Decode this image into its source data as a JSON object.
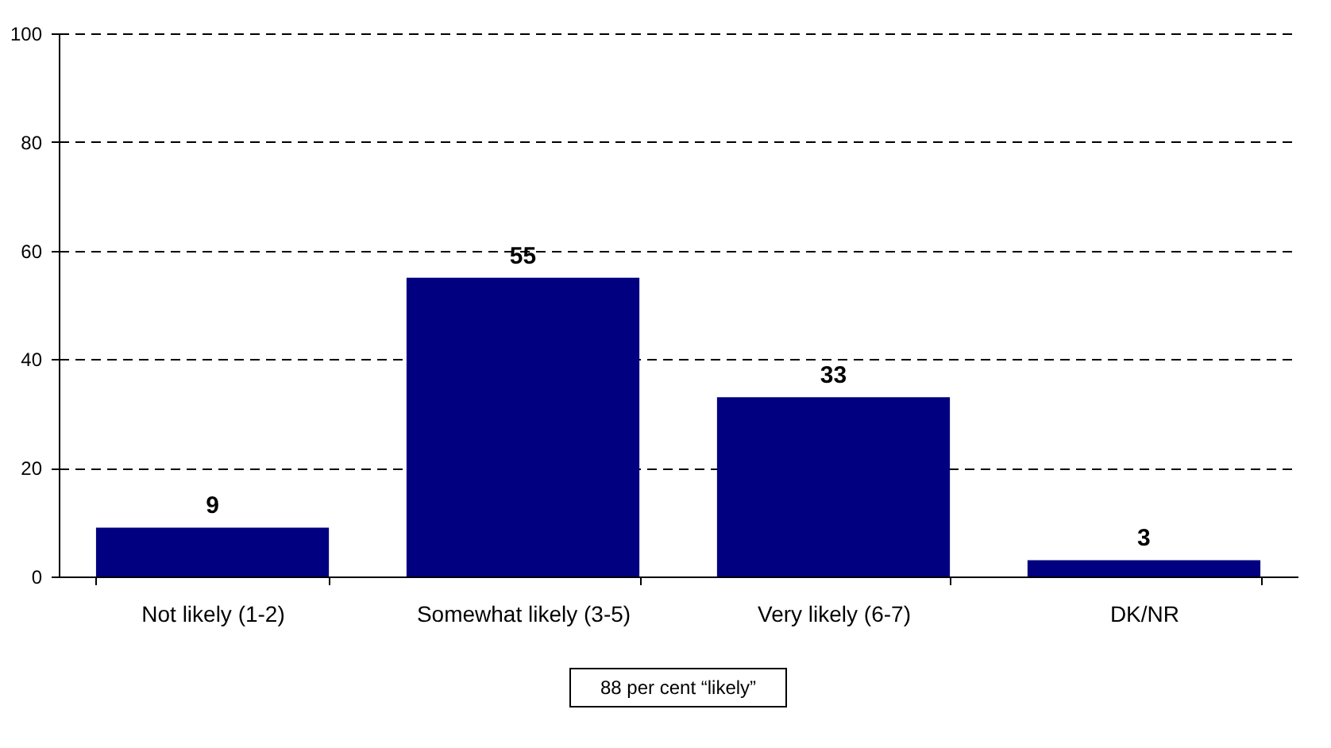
{
  "chart_data": {
    "type": "bar",
    "categories": [
      "Not likely (1-2)",
      "Somewhat likely (3-5)",
      "Very likely (6-7)",
      "DK/NR"
    ],
    "values": [
      9,
      55,
      33,
      3
    ],
    "color": "#000080",
    "ylim": [
      0,
      100
    ],
    "yticks": [
      0,
      20,
      40,
      60,
      80,
      100
    ],
    "grid": "y",
    "data_labels": true,
    "line_style": "dashed",
    "annotations": [
      "88 per cent “likely”"
    ]
  }
}
